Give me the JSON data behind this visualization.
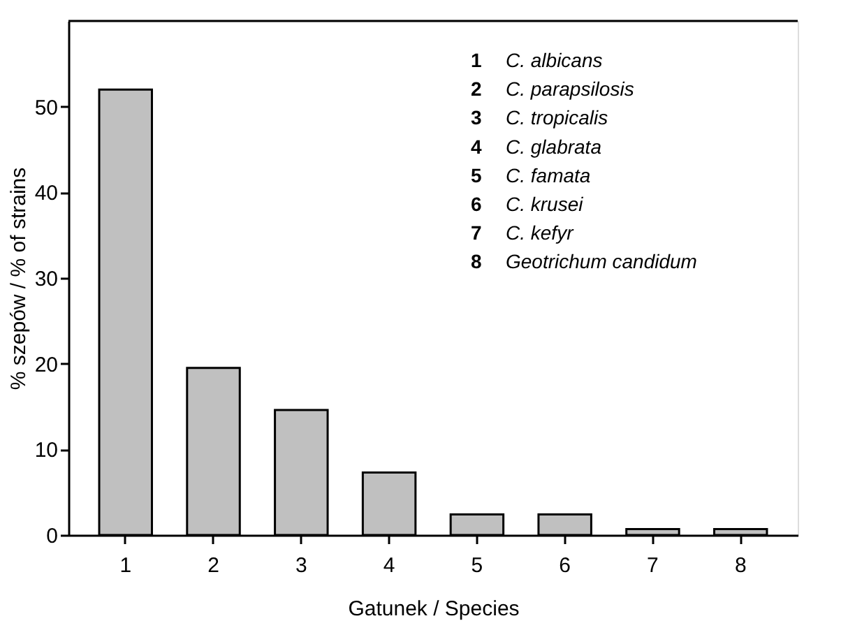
{
  "chart_data": {
    "type": "bar",
    "xlabel": "Gatunek / Species",
    "ylabel": "% szepów / % of strains",
    "categories": [
      "1",
      "2",
      "3",
      "4",
      "5",
      "6",
      "7",
      "8"
    ],
    "values": [
      52,
      19.5,
      14.6,
      7.3,
      2.4,
      2.4,
      0.7,
      0.7
    ],
    "color": "#c0c0c0",
    "ylim": [
      0,
      60
    ],
    "yticks": [
      0,
      10,
      20,
      30,
      40,
      50
    ],
    "grid": false,
    "annotations": [
      "1 C. albicans",
      "2 C. parapsilosis",
      "3 C. tropicalis",
      "4 C. glabrata",
      "5 C. famata",
      "6 C. krusei",
      "7 C. kefyr",
      "8 Geotrichum candidum"
    ]
  }
}
